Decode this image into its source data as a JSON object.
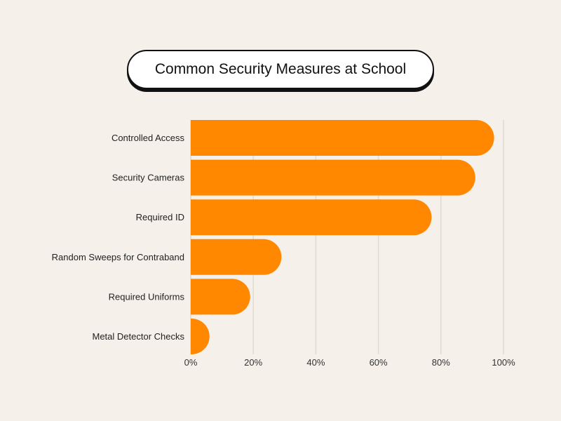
{
  "chart_data": {
    "type": "bar",
    "orientation": "horizontal",
    "title": "Common Security Measures at School",
    "categories": [
      "Controlled Access",
      "Security Cameras",
      "Required ID",
      "Random Sweeps for Contraband",
      "Required Uniforms",
      "Metal Detector Checks"
    ],
    "values": [
      97,
      91,
      77,
      29,
      19,
      6
    ],
    "xlim": [
      0,
      100
    ],
    "xticks": [
      "0%",
      "20%",
      "40%",
      "60%",
      "80%",
      "100%"
    ],
    "grid": true,
    "bar_color": "#ff8800",
    "xlabel": "",
    "ylabel": ""
  }
}
